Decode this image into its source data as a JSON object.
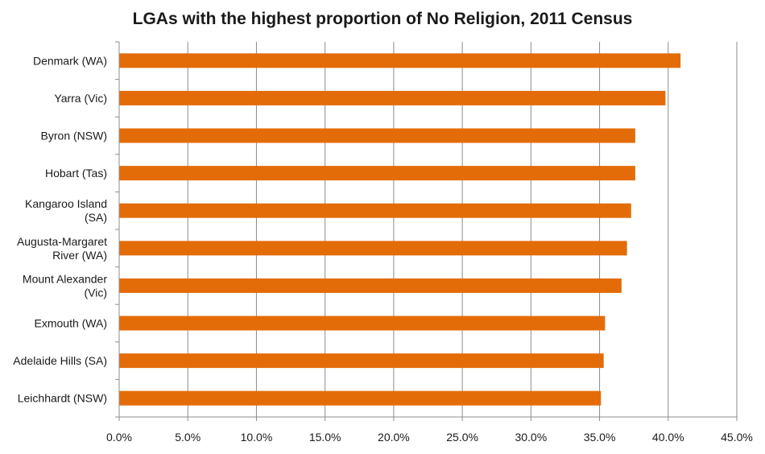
{
  "chart_data": {
    "type": "bar",
    "orientation": "horizontal",
    "title": "LGAs with the highest proportion of No Religion, 2011 Census",
    "categories": [
      [
        "Denmark (WA)"
      ],
      [
        "Yarra (Vic)"
      ],
      [
        "Byron (NSW)"
      ],
      [
        "Hobart (Tas)"
      ],
      [
        "Kangaroo Island",
        "(SA)"
      ],
      [
        "Augusta-Margaret",
        "River (WA)"
      ],
      [
        "Mount Alexander",
        "(Vic)"
      ],
      [
        "Exmouth (WA)"
      ],
      [
        "Adelaide Hills (SA)"
      ],
      [
        "Leichhardt (NSW)"
      ]
    ],
    "values": [
      40.9,
      39.8,
      37.6,
      37.6,
      37.3,
      37.0,
      36.6,
      35.4,
      35.3,
      35.1
    ],
    "xlim": [
      0,
      45
    ],
    "x_ticks": [
      "0.0%",
      "5.0%",
      "10.0%",
      "15.0%",
      "20.0%",
      "25.0%",
      "30.0%",
      "35.0%",
      "40.0%",
      "45.0%"
    ],
    "x_tick_values": [
      0,
      5,
      10,
      15,
      20,
      25,
      30,
      35,
      40,
      45
    ],
    "bar_color": "#E36C09",
    "grid": true,
    "legend": "none"
  }
}
